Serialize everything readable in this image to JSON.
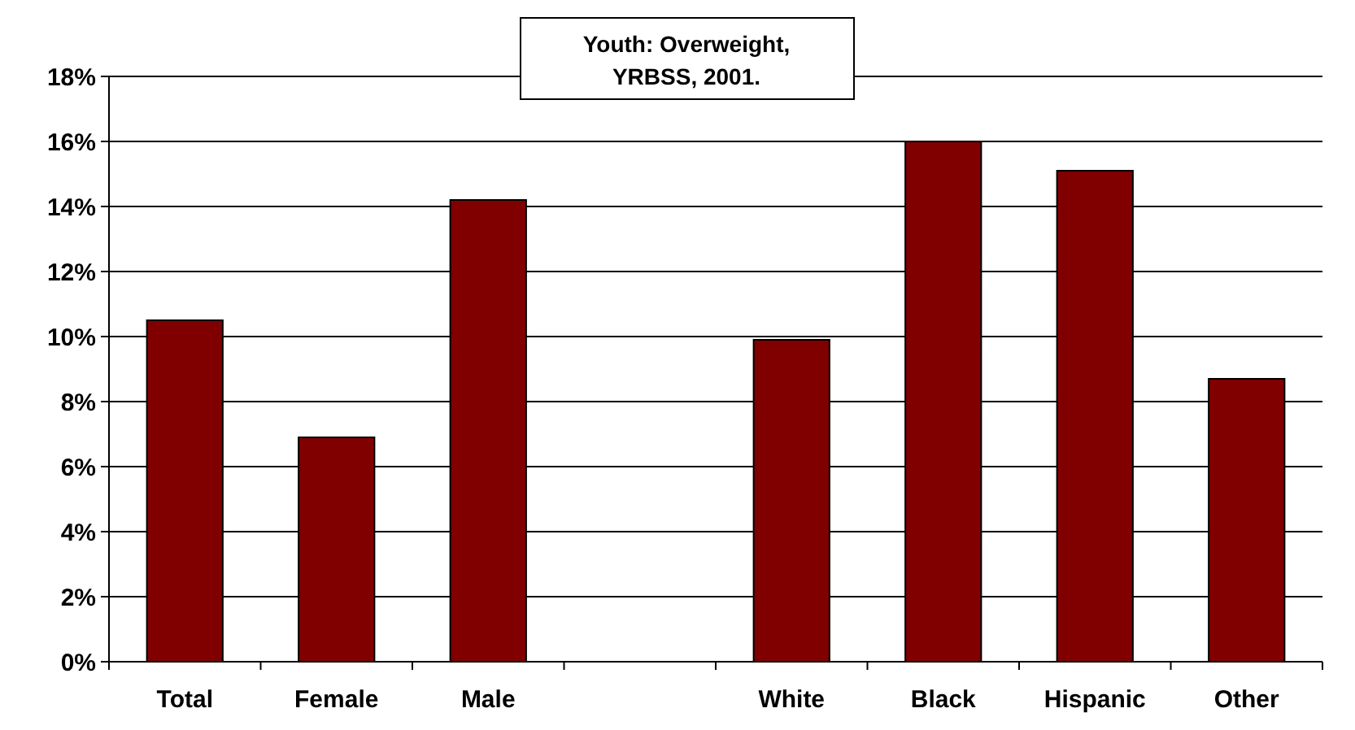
{
  "chart_data": {
    "type": "bar",
    "title": "Youth: Overweight, YRBSS, 2001.",
    "categories": [
      "Total",
      "Female",
      "Male",
      null,
      "White",
      "Black",
      "Hispanic",
      "Other"
    ],
    "values": [
      10.5,
      6.9,
      14.2,
      null,
      9.9,
      16.0,
      15.1,
      8.7
    ],
    "color": "#800000",
    "ylim": [
      0,
      18
    ],
    "yticks": [
      {
        "value": 0,
        "label": "0%"
      },
      {
        "value": 2,
        "label": "2%"
      },
      {
        "value": 4,
        "label": "4%"
      },
      {
        "value": 6,
        "label": "6%"
      },
      {
        "value": 8,
        "label": "8%"
      },
      {
        "value": 10,
        "label": "10%"
      },
      {
        "value": 12,
        "label": "12%"
      },
      {
        "value": 14,
        "label": "14%"
      },
      {
        "value": 16,
        "label": "16%"
      },
      {
        "value": 18,
        "label": "18%"
      }
    ],
    "grid": "y"
  }
}
